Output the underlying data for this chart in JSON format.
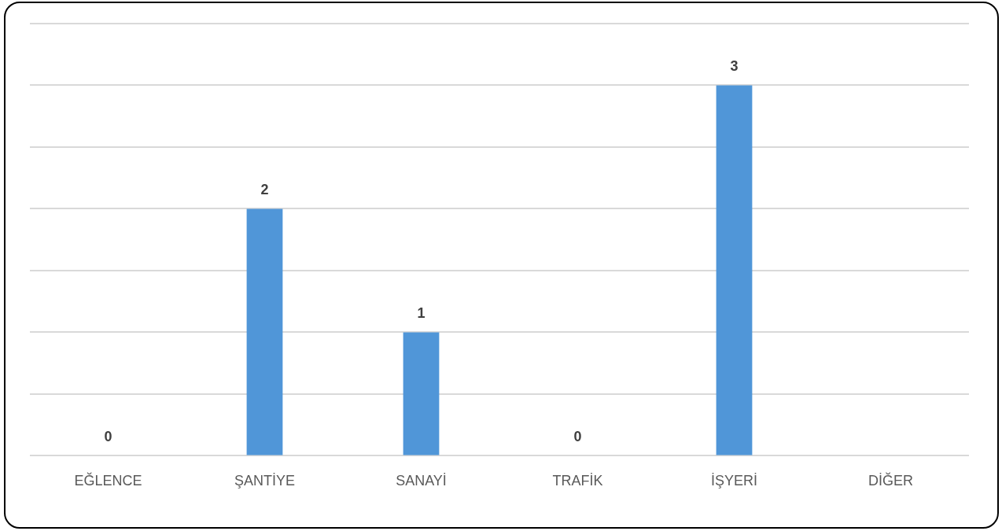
{
  "chart_data": {
    "type": "bar",
    "categories": [
      "EĞLENCE",
      "ŞANTİYE",
      "SANAYİ",
      "TRAFİK",
      "İŞYERİ",
      "DİĞER"
    ],
    "values": [
      0,
      2,
      1,
      0,
      3,
      null
    ],
    "value_labels": [
      "0",
      "2",
      "1",
      "0",
      "3",
      null
    ],
    "color": "#5096d8",
    "ylim": [
      0,
      3.5
    ],
    "yticks": [
      {
        "value": 0,
        "label": null
      },
      {
        "value": 0.5,
        "label": null
      },
      {
        "value": 1,
        "label": null
      },
      {
        "value": 1.5,
        "label": null
      },
      {
        "value": 2,
        "label": null
      },
      {
        "value": 2.5,
        "label": null
      },
      {
        "value": 3,
        "label": null
      },
      {
        "value": 3.5,
        "label": null
      }
    ],
    "tick_labels": "x",
    "grid": "y",
    "legend": false
  }
}
